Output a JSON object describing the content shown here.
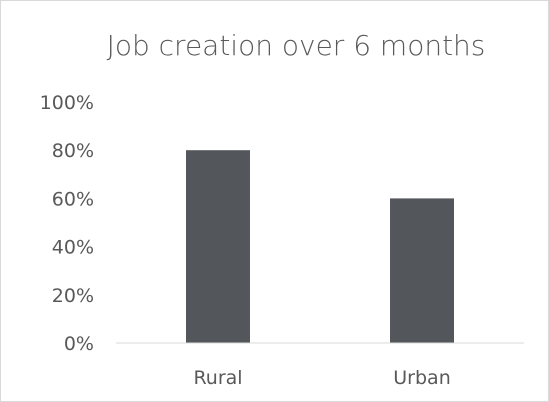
{
  "chart_data": {
    "type": "bar",
    "title": "Job creation over 6 months",
    "categories": [
      "Rural",
      "Urban"
    ],
    "values": [
      80,
      60
    ],
    "ylim": [
      0,
      100
    ],
    "yticks": [
      "0%",
      "20%",
      "40%",
      "60%",
      "80%",
      "100%"
    ],
    "ylabel": "",
    "xlabel": "",
    "grid": false,
    "legend": "none",
    "bar_color": "#53565a"
  }
}
